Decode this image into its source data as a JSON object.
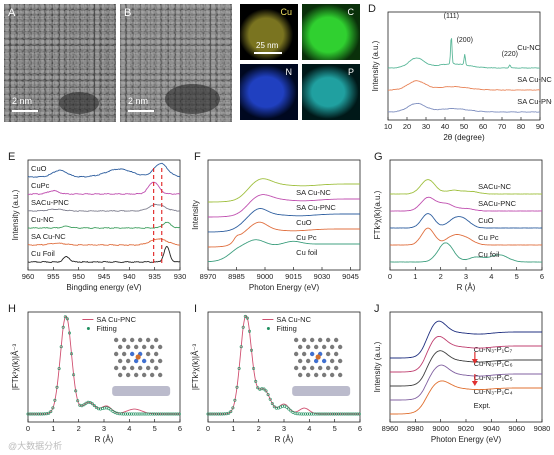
{
  "panels": {
    "A": {
      "label": "A",
      "scale": "2 nm"
    },
    "B": {
      "label": "B",
      "scale": "2 nm"
    },
    "C": {
      "label": "C",
      "scale": "25 nm",
      "elements": [
        "Cu",
        "C",
        "N",
        "P"
      ],
      "colors": [
        "#c8c040",
        "#30c030",
        "#2040c0",
        "#20b0b0"
      ]
    },
    "D": {
      "label": "D"
    },
    "E": {
      "label": "E"
    },
    "F": {
      "label": "F"
    },
    "G": {
      "label": "G"
    },
    "H": {
      "label": "H"
    },
    "I": {
      "label": "I"
    },
    "J": {
      "label": "J"
    }
  },
  "chart_data": [
    {
      "id": "D",
      "type": "line",
      "xlabel": "2θ (degree)",
      "ylabel": "Intensity (a.u.)",
      "xlim": [
        10,
        90
      ],
      "xticks": [
        10,
        20,
        30,
        40,
        50,
        60,
        70,
        80,
        90
      ],
      "series": [
        {
          "name": "Cu-NC",
          "color": "#5cb89a"
        },
        {
          "name": "SA Cu-NC",
          "color": "#e8855a"
        },
        {
          "name": "SA Cu-PNC",
          "color": "#8090c0"
        }
      ],
      "annotations": [
        "(111)",
        "(200)",
        "(220)"
      ]
    },
    {
      "id": "E",
      "type": "line",
      "xlabel": "Bingding energy (eV)",
      "ylabel": "Intensity (a.u.)",
      "xlim": [
        960,
        930
      ],
      "xticks": [
        960,
        955,
        950,
        945,
        940,
        935,
        930
      ],
      "series": [
        {
          "name": "CuO",
          "color": "#3060a0"
        },
        {
          "name": "CuPc",
          "color": "#c050b0"
        },
        {
          "name": "SACu-PNC",
          "color": "#808090"
        },
        {
          "name": "Cu-NC",
          "color": "#40a060"
        },
        {
          "name": "SA Cu-NC",
          "color": "#e07040"
        },
        {
          "name": "Cu Foil",
          "color": "#222222"
        }
      ]
    },
    {
      "id": "F",
      "type": "line",
      "xlabel": "Photon Energy (eV)",
      "ylabel": "Intensity",
      "xlim": [
        8970,
        9050
      ],
      "xticks": [
        8970,
        8985,
        9000,
        9015,
        9030,
        9045
      ],
      "series": [
        {
          "name": "SA Cu-NC",
          "color": "#a0c040"
        },
        {
          "name": "SA Cu-PNC",
          "color": "#c050b0"
        },
        {
          "name": "CuO",
          "color": "#3060a0"
        },
        {
          "name": "Cu Pc",
          "color": "#e07040"
        },
        {
          "name": "Cu foil",
          "color": "#40a080"
        }
      ]
    },
    {
      "id": "G",
      "type": "line",
      "xlabel": "R (Å)",
      "ylabel": "FTk³χ(k)(a.u.)",
      "xlim": [
        0,
        6
      ],
      "xticks": [
        0,
        1,
        2,
        3,
        4,
        5,
        6
      ],
      "series": [
        {
          "name": "SACu-NC",
          "color": "#a0c040"
        },
        {
          "name": "SACu-PNC",
          "color": "#c050b0"
        },
        {
          "name": "CuO",
          "color": "#3060a0"
        },
        {
          "name": "Cu Pc",
          "color": "#e07040"
        },
        {
          "name": "Cu foil",
          "color": "#40a080"
        }
      ]
    },
    {
      "id": "H",
      "type": "line",
      "xlabel": "R (Å)",
      "ylabel": "|FTk³χ(k)|Å⁻³",
      "xlim": [
        0,
        6
      ],
      "xticks": [
        0,
        1,
        2,
        3,
        4,
        5,
        6
      ],
      "series": [
        {
          "name": "SA Cu-PNC",
          "color": "#d05070"
        },
        {
          "name": "Fitting",
          "color": "#209060"
        }
      ]
    },
    {
      "id": "I",
      "type": "line",
      "xlabel": "R (Å)",
      "ylabel": "|FTk³χ(k)|Å⁻³",
      "xlim": [
        0,
        6
      ],
      "xticks": [
        0,
        1,
        2,
        3,
        4,
        5,
        6
      ],
      "series": [
        {
          "name": "SA Cu-NC",
          "color": "#d05070"
        },
        {
          "name": "Fitting",
          "color": "#209060"
        }
      ]
    },
    {
      "id": "J",
      "type": "line",
      "xlabel": "Photon Energy (eV)",
      "ylabel": "Intensity (a.u.)",
      "xlim": [
        8960,
        9080
      ],
      "xticks": [
        8960,
        8980,
        9000,
        9020,
        9040,
        9060,
        9080
      ],
      "series": [
        {
          "name": "Cu-N₃-P₁C₇",
          "color": "#203080"
        },
        {
          "name": "Cu-N₃-P₁C₆",
          "color": "#c04070"
        },
        {
          "name": "Cu-N₃-P₁C₅",
          "color": "#404040"
        },
        {
          "name": "Cu-N₃-P₁C₄",
          "color": "#8060a0"
        },
        {
          "name": "Expt.",
          "color": "#e07030"
        }
      ]
    }
  ],
  "watermark": "@大数据分析"
}
